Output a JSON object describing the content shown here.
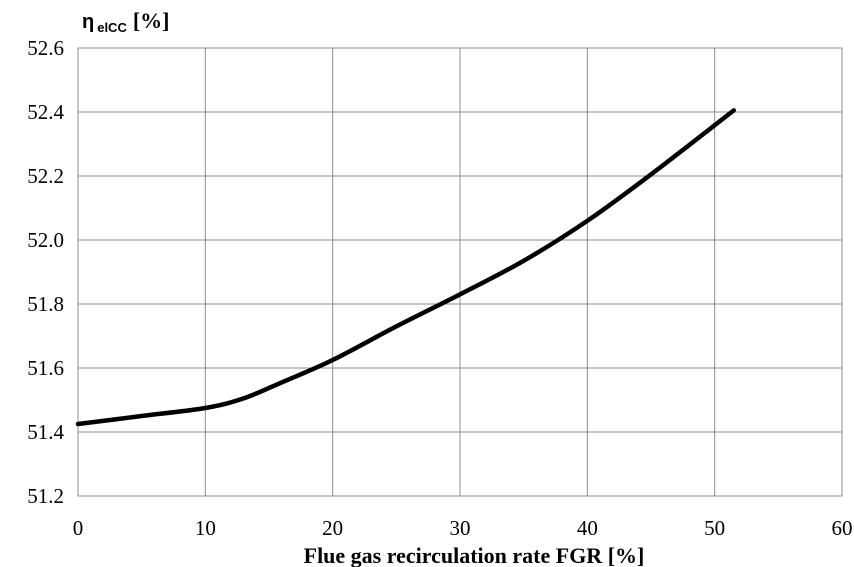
{
  "chart_data": {
    "type": "line",
    "xlabel": "Flue gas recirculation rate FGR [%]",
    "ylabel": {
      "symbol": "η",
      "subscript": "elCC",
      "unit": "[%]"
    },
    "xlim": [
      0,
      60
    ],
    "ylim": [
      51.2,
      52.6
    ],
    "x_ticks": [
      "0",
      "10",
      "20",
      "30",
      "40",
      "50",
      "60"
    ],
    "y_ticks": [
      "51.2",
      "51.4",
      "51.6",
      "51.8",
      "52.0",
      "52.2",
      "52.4",
      "52.6"
    ],
    "grid": true,
    "series": [
      {
        "x": [
          0,
          5,
          10,
          13,
          16,
          20,
          25,
          30,
          35,
          40,
          45,
          51.5
        ],
        "y": [
          51.425,
          51.45,
          51.475,
          51.505,
          51.555,
          51.625,
          51.73,
          51.83,
          51.935,
          52.06,
          52.205,
          52.405
        ]
      }
    ]
  }
}
